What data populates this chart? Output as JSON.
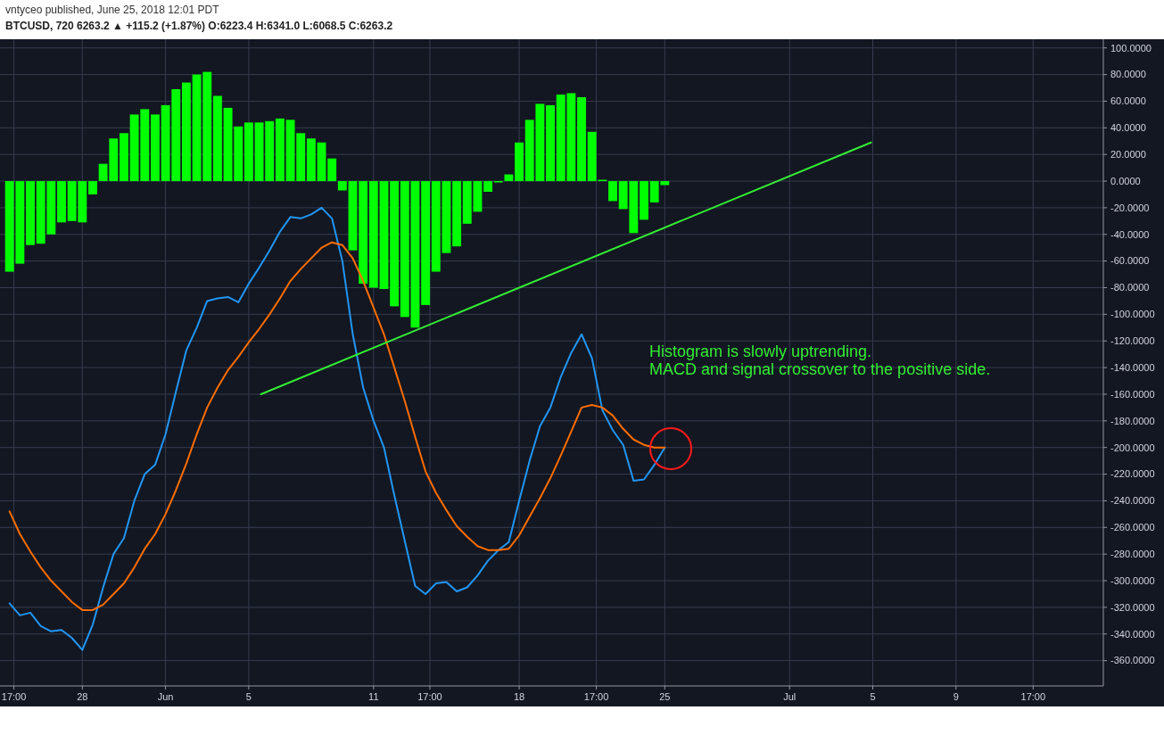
{
  "chart_data": {
    "type": "line",
    "title": "BTCUSD, 720 6263.2 ▲ +115.2 (+1.87%) O:6223.4 H:6341.0 L:6068.5 C:6263.2",
    "subtitle": "vntyceo published, June 25, 2018 12:01 PDT",
    "annotations": [
      "Histogram is slowly uptrending.",
      "MACD and signal crossover to the positive side."
    ],
    "xlim": [
      "2018-05-24T01:00",
      "2018-07-16T02:00"
    ],
    "xticks": [
      {
        "value": "2018-05-24T17:00",
        "label": "17:00"
      },
      {
        "value": "2018-05-28",
        "label": "28"
      },
      {
        "value": "2018-06-01",
        "label": "Jun"
      },
      {
        "value": "2018-06-05",
        "label": "5"
      },
      {
        "value": "2018-06-11",
        "label": "11"
      },
      {
        "value": "2018-06-13T17:00",
        "label": "17:00"
      },
      {
        "value": "2018-06-18",
        "label": "18"
      },
      {
        "value": "2018-06-21T17:00",
        "label": "17:00"
      },
      {
        "value": "2018-06-25",
        "label": "25"
      },
      {
        "value": "2018-07-01",
        "label": "Jul"
      },
      {
        "value": "2018-07-05",
        "label": "5"
      },
      {
        "value": "2018-07-09",
        "label": "9"
      },
      {
        "value": "2018-07-12T17:00",
        "label": "17:00"
      }
    ],
    "x": [
      "2018-05-24T12:00",
      "2018-05-25T00:00",
      "2018-05-25T12:00",
      "2018-05-26T00:00",
      "2018-05-26T12:00",
      "2018-05-27T00:00",
      "2018-05-27T12:00",
      "2018-05-28T00:00",
      "2018-05-28T12:00",
      "2018-05-29T00:00",
      "2018-05-29T12:00",
      "2018-05-30T00:00",
      "2018-05-30T12:00",
      "2018-05-31T00:00",
      "2018-05-31T12:00",
      "2018-06-01T00:00",
      "2018-06-01T12:00",
      "2018-06-02T00:00",
      "2018-06-02T12:00",
      "2018-06-03T00:00",
      "2018-06-03T12:00",
      "2018-06-04T00:00",
      "2018-06-04T12:00",
      "2018-06-05T00:00",
      "2018-06-05T12:00",
      "2018-06-06T00:00",
      "2018-06-06T12:00",
      "2018-06-07T00:00",
      "2018-06-07T12:00",
      "2018-06-08T00:00",
      "2018-06-08T12:00",
      "2018-06-09T00:00",
      "2018-06-09T12:00",
      "2018-06-10T00:00",
      "2018-06-10T12:00",
      "2018-06-11T00:00",
      "2018-06-11T12:00",
      "2018-06-12T00:00",
      "2018-06-12T12:00",
      "2018-06-13T00:00",
      "2018-06-13T12:00",
      "2018-06-14T00:00",
      "2018-06-14T12:00",
      "2018-06-15T00:00",
      "2018-06-15T12:00",
      "2018-06-16T00:00",
      "2018-06-16T12:00",
      "2018-06-17T00:00",
      "2018-06-17T12:00",
      "2018-06-18T00:00",
      "2018-06-18T12:00",
      "2018-06-19T00:00",
      "2018-06-19T12:00",
      "2018-06-20T00:00",
      "2018-06-20T12:00",
      "2018-06-21T00:00",
      "2018-06-21T12:00",
      "2018-06-22T00:00",
      "2018-06-22T12:00",
      "2018-06-23T00:00",
      "2018-06-23T12:00",
      "2018-06-24T00:00",
      "2018-06-24T12:00",
      "2018-06-25T00:00"
    ],
    "ylim": [
      -379,
      106.5
    ],
    "yticks": [
      {
        "value": 100,
        "label": "100.0000"
      },
      {
        "value": 80,
        "label": "80.0000"
      },
      {
        "value": 60,
        "label": "60.0000"
      },
      {
        "value": 40,
        "label": "40.0000"
      },
      {
        "value": 20,
        "label": "20.0000"
      },
      {
        "value": 0,
        "label": "0.0000"
      },
      {
        "value": -20,
        "label": "-20.0000"
      },
      {
        "value": -40,
        "label": "-40.0000"
      },
      {
        "value": -60,
        "label": "-60.0000"
      },
      {
        "value": -80,
        "label": "-80.0000"
      },
      {
        "value": -100,
        "label": "-100.0000"
      },
      {
        "value": -120,
        "label": "-120.0000"
      },
      {
        "value": -140,
        "label": "-140.0000"
      },
      {
        "value": -160,
        "label": "-160.0000"
      },
      {
        "value": -180,
        "label": "-180.0000"
      },
      {
        "value": -200,
        "label": "-200.0000"
      },
      {
        "value": -220,
        "label": "-220.0000"
      },
      {
        "value": -240,
        "label": "-240.0000"
      },
      {
        "value": -260,
        "label": "-260.0000"
      },
      {
        "value": -280,
        "label": "-280.0000"
      },
      {
        "value": -300,
        "label": "-300.0000"
      },
      {
        "value": -320,
        "label": "-320.0000"
      },
      {
        "value": -340,
        "label": "-340.0000"
      },
      {
        "value": -360,
        "label": "-360.0000"
      }
    ],
    "grid": true,
    "series": [
      {
        "type": "bar",
        "color": "#00ff00",
        "values": [
          -68,
          -62,
          -48,
          -47,
          -40,
          -31,
          -30,
          -31,
          -10,
          13,
          32,
          36,
          50,
          54,
          50,
          57,
          69,
          74,
          80,
          82,
          64,
          55,
          41,
          44,
          44,
          45,
          47,
          46,
          36,
          32,
          29,
          17,
          -7,
          -52,
          -77,
          -80,
          -81,
          -94,
          -102,
          -110,
          -93,
          -68,
          -54,
          -49,
          -32,
          -23,
          -8,
          -1,
          5,
          29,
          46,
          58,
          57,
          65,
          66,
          63,
          37,
          1,
          -15,
          -21,
          -39,
          -29,
          -16,
          -3
        ]
      },
      {
        "type": "line",
        "color": "#2196f3",
        "values": [
          -317,
          -326,
          -324,
          -334,
          -338,
          -337,
          -343,
          -352,
          -333,
          -305,
          -280,
          -268,
          -240,
          -220,
          -213,
          -190,
          -158,
          -127,
          -110,
          -90,
          -88,
          -87,
          -91,
          -77,
          -65,
          -52,
          -38,
          -27,
          -28,
          -25,
          -20,
          -28,
          -60,
          -115,
          -155,
          -180,
          -200,
          -236,
          -270,
          -304,
          -310,
          -302,
          -301,
          -308,
          -305,
          -296,
          -285,
          -277,
          -271,
          -240,
          -210,
          -184,
          -170,
          -147,
          -129,
          -115,
          -133,
          -172,
          -187,
          -198,
          -225,
          -224,
          -213,
          -200
        ]
      },
      {
        "type": "line",
        "color": "#ff6d00",
        "values": [
          -248,
          -265,
          -278,
          -290,
          -300,
          -308,
          -316,
          -322,
          -322,
          -318,
          -310,
          -302,
          -290,
          -276,
          -265,
          -250,
          -232,
          -212,
          -190,
          -170,
          -155,
          -142,
          -132,
          -121,
          -111,
          -100,
          -88,
          -75,
          -66,
          -58,
          -50,
          -46,
          -48,
          -58,
          -75,
          -95,
          -115,
          -140,
          -165,
          -192,
          -218,
          -234,
          -247,
          -259,
          -267,
          -274,
          -277,
          -277,
          -276,
          -266,
          -252,
          -238,
          -223,
          -206,
          -188,
          -170,
          -168,
          -170,
          -176,
          -186,
          -194,
          -198,
          -200,
          -200
        ]
      },
      {
        "type": "line",
        "color": "#33ee33",
        "x": [
          "2018-06-05T14:00",
          "2018-07-04T22:00"
        ],
        "values": [
          -160,
          29
        ]
      }
    ]
  }
}
